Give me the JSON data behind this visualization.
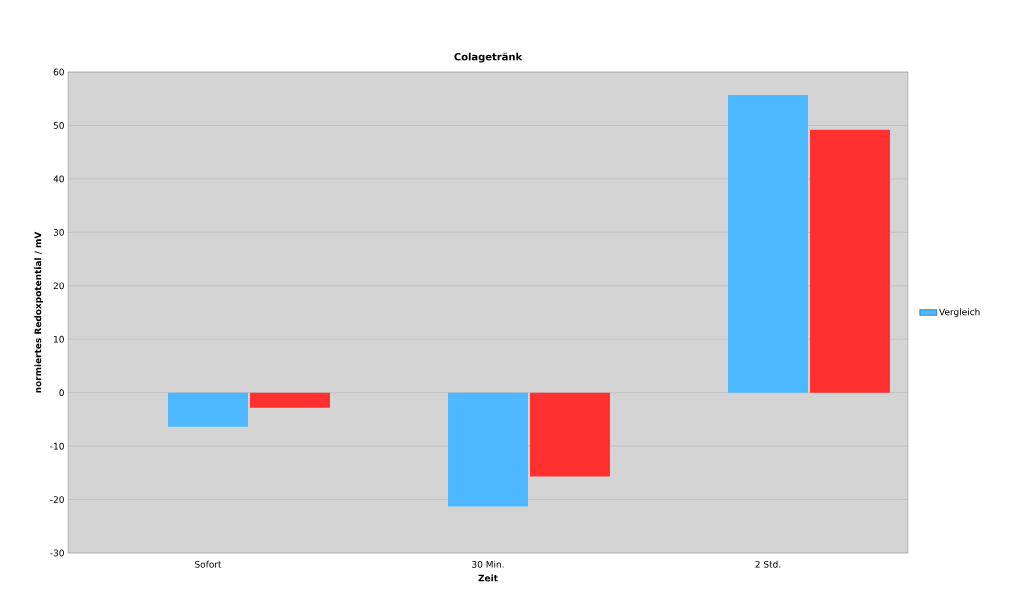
{
  "chart_data": {
    "type": "bar",
    "title": "Colagetränk",
    "xlabel": "Zeit",
    "ylabel": "normiertes Redoxpotential / mV",
    "categories": [
      "Sofort",
      "30 Min.",
      "2 Std."
    ],
    "series": [
      {
        "name": "Vergleich",
        "color": "#4db8ff",
        "values": [
          -6.4,
          -21.3,
          55.7
        ]
      },
      {
        "color": "#ff3030",
        "values": [
          -2.8,
          -15.7,
          49.2
        ]
      }
    ],
    "ylim": [
      -30,
      60
    ],
    "yticks": [
      -30,
      -20,
      -10,
      0,
      10,
      20,
      30,
      40,
      50,
      60
    ],
    "grid": "y",
    "legend": "right"
  }
}
